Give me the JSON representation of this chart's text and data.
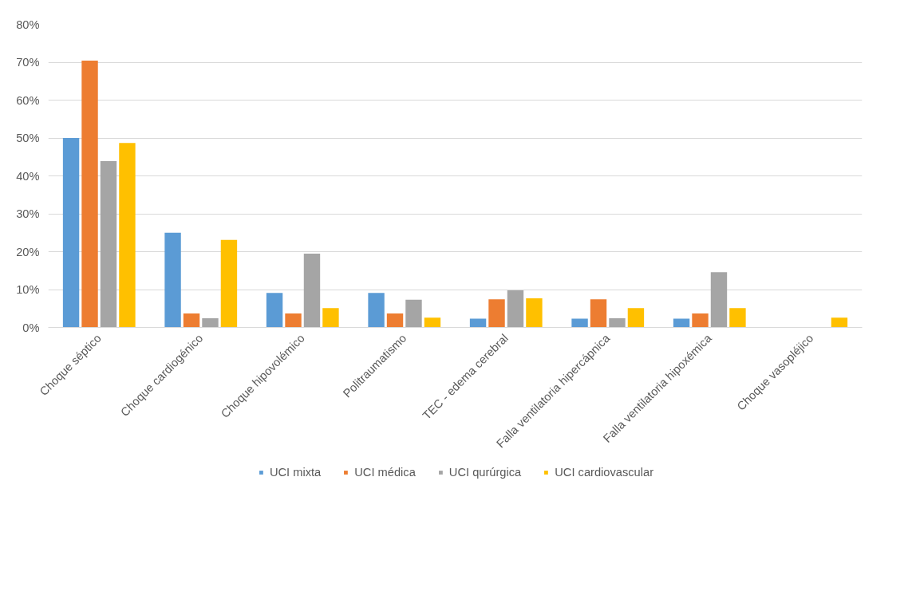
{
  "chart_data": {
    "type": "bar",
    "categories": [
      "Choque séptico",
      "Choque cardiogénico",
      "Choque hipovolémico",
      "Politraumatismo",
      "TEC - edema cerebral",
      "Falla ventilatoria hipercápnica",
      "Falla ventilatoria hipoxémica",
      "Choque vasopléjico"
    ],
    "series": [
      {
        "name": "UCI mixta",
        "color": "#5b9bd5",
        "values": [
          50.0,
          25.0,
          9.1,
          9.1,
          2.3,
          2.3,
          2.3,
          0
        ]
      },
      {
        "name": "UCI médica",
        "color": "#ed7d31",
        "values": [
          70.4,
          3.7,
          3.7,
          3.7,
          7.4,
          7.4,
          3.7,
          0
        ]
      },
      {
        "name": "UCI qurúrgica",
        "color": "#a5a5a5",
        "values": [
          43.9,
          2.4,
          19.5,
          7.3,
          9.8,
          2.4,
          14.6,
          0
        ]
      },
      {
        "name": "UCI cardiovascular",
        "color": "#ffc000",
        "values": [
          48.7,
          23.1,
          5.1,
          2.6,
          7.7,
          5.1,
          5.1,
          2.6
        ]
      }
    ],
    "ylim": [
      0,
      80
    ],
    "yticks": [
      {
        "value": 0,
        "label": "0%"
      },
      {
        "value": 10,
        "label": "10%"
      },
      {
        "value": 20,
        "label": "20%"
      },
      {
        "value": 30,
        "label": "30%"
      },
      {
        "value": 40,
        "label": "40%"
      },
      {
        "value": 50,
        "label": "50%"
      },
      {
        "value": 60,
        "label": "60%"
      },
      {
        "value": 70,
        "label": "70%"
      },
      {
        "value": 80,
        "label": "80%"
      }
    ],
    "grid": "y",
    "legend": "bottom"
  }
}
